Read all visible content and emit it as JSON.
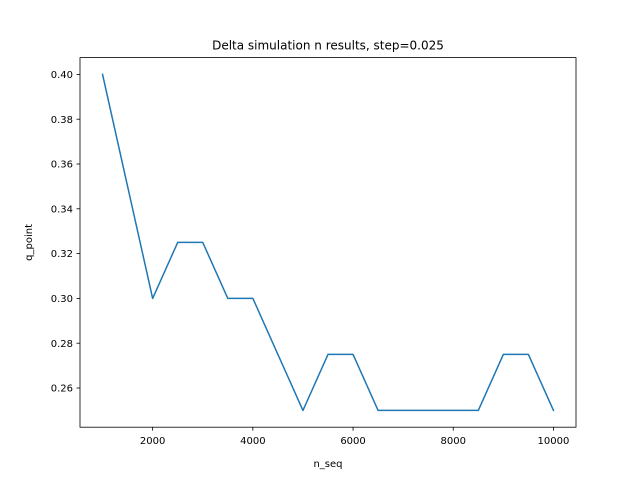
{
  "chart_data": {
    "type": "line",
    "title": "Delta simulation n results, step=0.025",
    "xlabel": "n_seq",
    "ylabel": "q_point",
    "x": [
      1000,
      1500,
      2000,
      2500,
      3000,
      3500,
      4000,
      4500,
      5000,
      5500,
      6000,
      6500,
      7000,
      7500,
      8000,
      8500,
      9000,
      9500,
      10000
    ],
    "series": [
      {
        "values": [
          0.4,
          0.35,
          0.3,
          0.325,
          0.325,
          0.3,
          0.3,
          0.275,
          0.25,
          0.275,
          0.275,
          0.25,
          0.25,
          0.25,
          0.25,
          0.25,
          0.275,
          0.275,
          0.25
        ],
        "color": "#1f77b4"
      }
    ],
    "xlim": [
      550,
      10450
    ],
    "ylim": [
      0.2425,
      0.4075
    ],
    "xticks": [
      2000,
      4000,
      6000,
      8000,
      10000
    ],
    "xtick_labels": [
      "2000",
      "4000",
      "6000",
      "8000",
      "10000"
    ],
    "yticks": [
      0.26,
      0.28,
      0.3,
      0.32,
      0.34,
      0.36,
      0.38,
      0.4
    ],
    "ytick_labels": [
      "0.26",
      "0.28",
      "0.30",
      "0.32",
      "0.34",
      "0.36",
      "0.38",
      "0.40"
    ],
    "grid": false,
    "legend": "none"
  }
}
